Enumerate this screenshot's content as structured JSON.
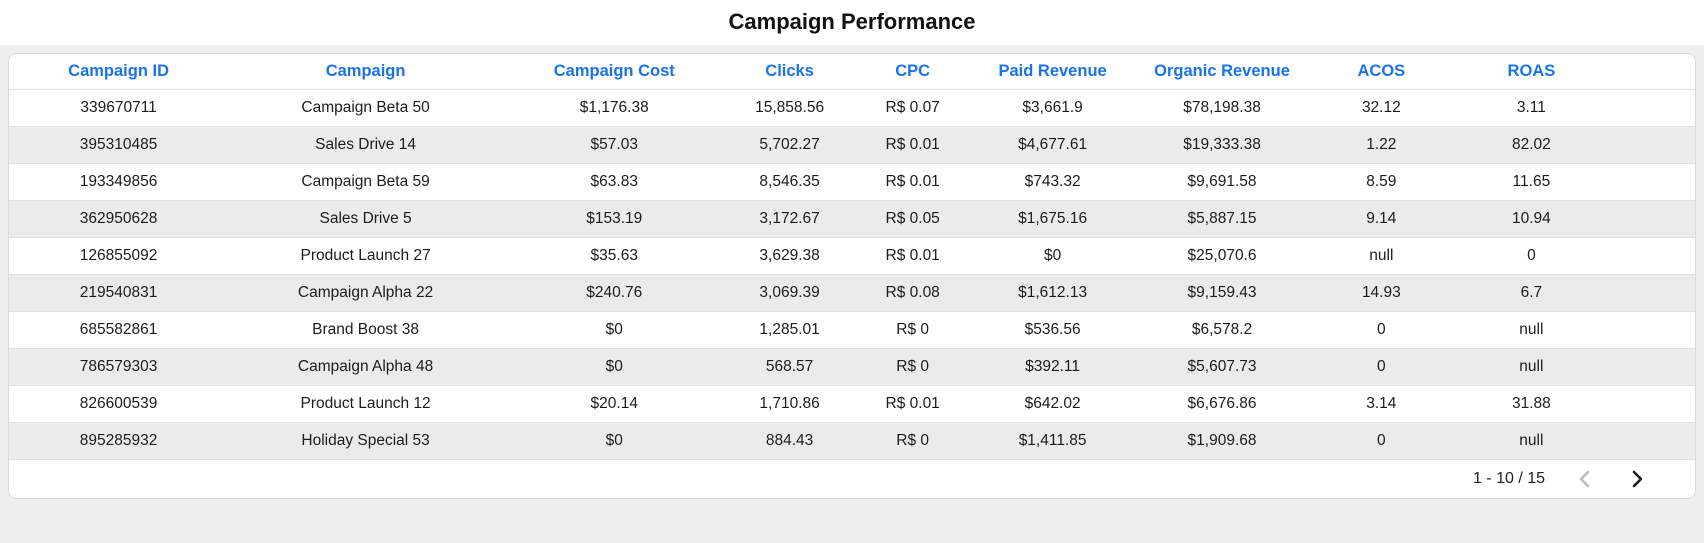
{
  "title": "Campaign Performance",
  "chart_data": {
    "type": "table",
    "title": "Campaign Performance",
    "columns": [
      "Campaign ID",
      "Campaign",
      "Campaign Cost",
      "Clicks",
      "CPC",
      "Paid Revenue",
      "Organic Revenue",
      "ACOS",
      "ROAS"
    ],
    "rows": [
      [
        "339670711",
        "Campaign Beta 50",
        "$1,176.38",
        "15,858.56",
        "R$ 0.07",
        "$3,661.9",
        "$78,198.38",
        "32.12",
        "3.11"
      ],
      [
        "395310485",
        "Sales Drive 14",
        "$57.03",
        "5,702.27",
        "R$ 0.01",
        "$4,677.61",
        "$19,333.38",
        "1.22",
        "82.02"
      ],
      [
        "193349856",
        "Campaign Beta 59",
        "$63.83",
        "8,546.35",
        "R$ 0.01",
        "$743.32",
        "$9,691.58",
        "8.59",
        "11.65"
      ],
      [
        "362950628",
        "Sales Drive 5",
        "$153.19",
        "3,172.67",
        "R$ 0.05",
        "$1,675.16",
        "$5,887.15",
        "9.14",
        "10.94"
      ],
      [
        "126855092",
        "Product Launch 27",
        "$35.63",
        "3,629.38",
        "R$ 0.01",
        "$0",
        "$25,070.6",
        "null",
        "0"
      ],
      [
        "219540831",
        "Campaign Alpha 22",
        "$240.76",
        "3,069.39",
        "R$ 0.08",
        "$1,612.13",
        "$9,159.43",
        "14.93",
        "6.7"
      ],
      [
        "685582861",
        "Brand Boost 38",
        "$0",
        "1,285.01",
        "R$ 0",
        "$536.56",
        "$6,578.2",
        "0",
        "null"
      ],
      [
        "786579303",
        "Campaign Alpha 48",
        "$0",
        "568.57",
        "R$ 0",
        "$392.11",
        "$5,607.73",
        "0",
        "null"
      ],
      [
        "826600539",
        "Product Launch 12",
        "$20.14",
        "1,710.86",
        "R$ 0.01",
        "$642.02",
        "$6,676.86",
        "3.14",
        "31.88"
      ],
      [
        "895285932",
        "Holiday Special 53",
        "$0",
        "884.43",
        "R$ 0",
        "$1,411.85",
        "$1,909.68",
        "0",
        "null"
      ]
    ],
    "layout": {
      "striped": true,
      "header_text_color": "#1a73e8",
      "alt_row_color": "#ebebeb"
    }
  },
  "pagination": {
    "range_label": "1 - 10 / 15",
    "prev_icon": "chevron-left",
    "next_icon": "chevron-right",
    "prev_enabled": false,
    "next_enabled": true
  }
}
